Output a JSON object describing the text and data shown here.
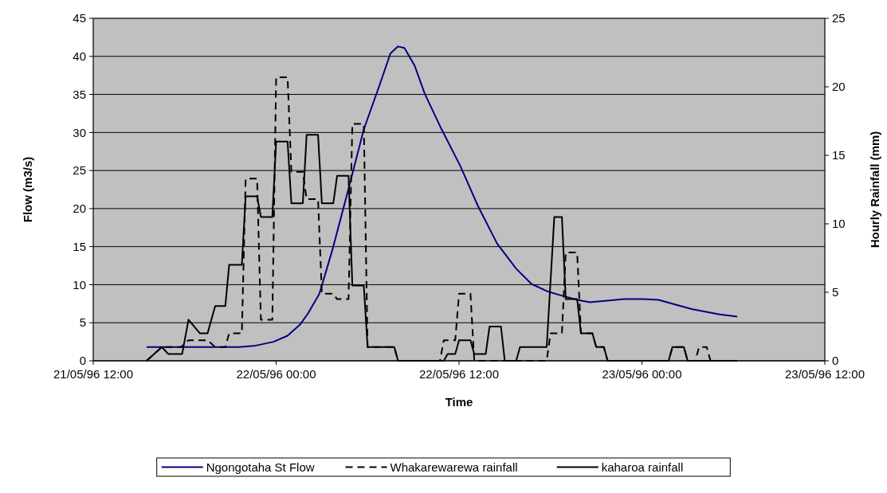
{
  "chart_data": {
    "type": "line",
    "xlabel": "Time",
    "ylabel": "Flow (m3/s)",
    "y2label": "Hourly Rainfall (mm)",
    "xlim": [
      "1996-05-21T12:00",
      "1996-05-23T12:00"
    ],
    "xticks": [
      {
        "value": "1996-05-21T12:00",
        "label": "21/05/96 12:00"
      },
      {
        "value": "1996-05-22T00:00",
        "label": "22/05/96 00:00"
      },
      {
        "value": "1996-05-22T12:00",
        "label": "22/05/96 12:00"
      },
      {
        "value": "1996-05-23T00:00",
        "label": "23/05/96 00:00"
      },
      {
        "value": "1996-05-23T12:00",
        "label": "23/05/96 12:00"
      }
    ],
    "ylim": [
      0,
      45
    ],
    "yticks": [
      0,
      5,
      10,
      15,
      20,
      25,
      30,
      35,
      40,
      45
    ],
    "y2lim": [
      0,
      25
    ],
    "y2ticks": [
      0,
      5,
      10,
      15,
      20,
      25
    ],
    "grid": "y",
    "legend": "bottom",
    "marker": "none",
    "series": [
      {
        "name": "Ngongotaha St Flow",
        "color": "#000080",
        "line_style": "solid",
        "x": [
          "1996-05-21T15:30",
          "1996-05-21T21:35",
          "1996-05-21T22:40",
          "1996-05-21T23:50",
          "1996-05-22T00:45",
          "1996-05-22T01:35",
          "1996-05-22T02:05",
          "1996-05-22T02:50",
          "1996-05-22T03:40",
          "1996-05-22T04:45",
          "1996-05-22T05:45",
          "1996-05-22T06:50",
          "1996-05-22T07:30",
          "1996-05-22T08:00",
          "1996-05-22T08:25",
          "1996-05-22T09:05",
          "1996-05-22T09:45",
          "1996-05-22T10:50",
          "1996-05-22T12:05",
          "1996-05-22T13:15",
          "1996-05-22T14:30",
          "1996-05-22T15:45",
          "1996-05-22T16:45",
          "1996-05-22T17:50",
          "1996-05-22T18:30",
          "1996-05-22T19:45",
          "1996-05-22T20:35",
          "1996-05-22T22:50",
          "1996-05-23T00:05",
          "1996-05-23T01:05",
          "1996-05-23T03:15",
          "1996-05-23T05:05",
          "1996-05-23T06:15"
        ],
        "values": [
          1.8,
          1.8,
          2.0,
          2.5,
          3.3,
          4.8,
          6.2,
          8.8,
          14.4,
          22.6,
          30.4,
          36.5,
          40.4,
          41.3,
          41.1,
          38.8,
          35.1,
          30.5,
          25.6,
          20.3,
          15.4,
          12.1,
          10.1,
          9.1,
          8.7,
          8.0,
          7.7,
          8.1,
          8.1,
          8.0,
          6.8,
          6.1,
          5.8
        ]
      },
      {
        "name": "Whakarewarewa rainfall",
        "color": "#000000",
        "line_style": "dashed",
        "axis": "y2",
        "x": [
          "1996-05-21T15:30",
          "1996-05-21T16:30",
          "1996-05-21T17:45",
          "1996-05-21T18:15",
          "1996-05-21T19:30",
          "1996-05-21T20:00",
          "1996-05-21T20:40",
          "1996-05-21T20:55",
          "1996-05-21T21:45",
          "1996-05-21T22:00",
          "1996-05-21T22:45",
          "1996-05-21T23:00",
          "1996-05-21T23:45",
          "1996-05-22T00:00",
          "1996-05-22T00:45",
          "1996-05-22T01:00",
          "1996-05-22T01:45",
          "1996-05-22T02:00",
          "1996-05-22T02:45",
          "1996-05-22T03:00",
          "1996-05-22T03:45",
          "1996-05-22T04:00",
          "1996-05-22T04:45",
          "1996-05-22T05:00",
          "1996-05-22T05:45",
          "1996-05-22T06:00",
          "1996-05-22T07:45",
          "1996-05-22T08:00",
          "1996-05-22T10:45",
          "1996-05-22T11:00",
          "1996-05-22T11:45",
          "1996-05-22T12:00",
          "1996-05-22T12:45",
          "1996-05-22T13:00",
          "1996-05-22T17:45",
          "1996-05-22T18:00",
          "1996-05-22T18:45",
          "1996-05-22T19:00",
          "1996-05-22T19:45",
          "1996-05-22T20:00",
          "1996-05-22T20:45",
          "1996-05-22T21:00",
          "1996-05-22T21:30",
          "1996-05-22T21:45",
          "1996-05-23T01:45",
          "1996-05-23T02:00",
          "1996-05-23T02:45",
          "1996-05-23T03:00",
          "1996-05-23T03:30",
          "1996-05-23T03:45",
          "1996-05-23T04:15",
          "1996-05-23T04:30",
          "1996-05-23T06:15"
        ],
        "values": [
          0,
          1.0,
          1.0,
          1.5,
          1.5,
          1.0,
          1.0,
          2.0,
          2.0,
          13.3,
          13.3,
          3.0,
          3.0,
          20.7,
          20.7,
          13.8,
          13.8,
          11.8,
          11.8,
          4.9,
          4.9,
          4.5,
          4.5,
          17.3,
          17.3,
          1.0,
          1.0,
          0,
          0,
          1.5,
          1.5,
          4.9,
          4.9,
          0,
          0,
          2.0,
          2.0,
          7.9,
          7.9,
          2.0,
          2.0,
          1.0,
          1.0,
          0,
          0,
          1.0,
          1.0,
          0,
          0,
          1.0,
          1.0,
          0,
          0
        ]
      },
      {
        "name": "kaharoa rainfall",
        "color": "#000000",
        "line_style": "solid",
        "axis": "y2",
        "x": [
          "1996-05-21T15:30",
          "1996-05-21T16:30",
          "1996-05-21T16:55",
          "1996-05-21T17:50",
          "1996-05-21T18:15",
          "1996-05-21T19:00",
          "1996-05-21T19:30",
          "1996-05-21T20:00",
          "1996-05-21T20:40",
          "1996-05-21T20:55",
          "1996-05-21T21:45",
          "1996-05-21T22:00",
          "1996-05-21T22:45",
          "1996-05-21T23:00",
          "1996-05-21T23:45",
          "1996-05-22T00:00",
          "1996-05-22T00:45",
          "1996-05-22T01:00",
          "1996-05-22T01:45",
          "1996-05-22T02:00",
          "1996-05-22T02:45",
          "1996-05-22T03:00",
          "1996-05-22T03:45",
          "1996-05-22T04:00",
          "1996-05-22T04:45",
          "1996-05-22T05:00",
          "1996-05-22T05:45",
          "1996-05-22T06:00",
          "1996-05-22T07:45",
          "1996-05-22T08:00",
          "1996-05-22T11:00",
          "1996-05-22T11:15",
          "1996-05-22T11:45",
          "1996-05-22T12:00",
          "1996-05-22T12:45",
          "1996-05-22T13:00",
          "1996-05-22T13:45",
          "1996-05-22T14:00",
          "1996-05-22T14:45",
          "1996-05-22T15:00",
          "1996-05-22T15:45",
          "1996-05-22T16:00",
          "1996-05-22T16:45",
          "1996-05-22T17:00",
          "1996-05-22T17:45",
          "1996-05-22T18:15",
          "1996-05-22T18:45",
          "1996-05-22T19:00",
          "1996-05-22T19:45",
          "1996-05-22T20:00",
          "1996-05-22T20:45",
          "1996-05-22T21:00",
          "1996-05-22T21:30",
          "1996-05-22T21:45",
          "1996-05-23T01:45",
          "1996-05-23T02:00",
          "1996-05-23T02:45",
          "1996-05-23T03:00",
          "1996-05-23T06:15"
        ],
        "values": [
          0,
          1.0,
          0.5,
          0.5,
          3.0,
          2.0,
          2.0,
          4.0,
          4.0,
          7.0,
          7.0,
          12.0,
          12.0,
          10.5,
          10.5,
          16.0,
          16.0,
          11.5,
          11.5,
          16.5,
          16.5,
          11.5,
          11.5,
          13.5,
          13.5,
          5.5,
          5.5,
          1.0,
          1.0,
          0,
          0,
          0.5,
          0.5,
          1.5,
          1.5,
          0.5,
          0.5,
          2.5,
          2.5,
          0,
          0,
          1.0,
          1.0,
          1.0,
          1.0,
          10.5,
          10.5,
          4.5,
          4.5,
          2.0,
          2.0,
          1.0,
          1.0,
          0,
          0,
          1.0,
          1.0,
          0,
          0
        ]
      }
    ]
  }
}
